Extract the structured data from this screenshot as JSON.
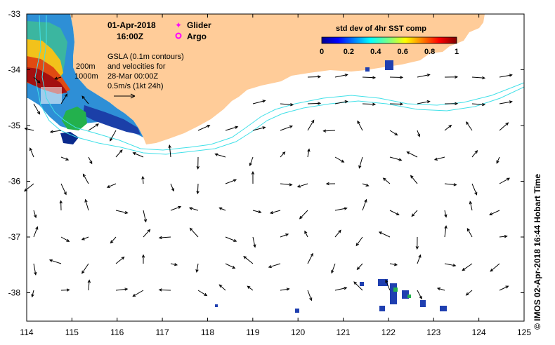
{
  "header": {
    "date": "01-Apr-2018",
    "time": "16:00Z"
  },
  "legend": {
    "glider": "Glider",
    "argo": "Argo",
    "glider_color": "#ff00ff",
    "argo_color": "#ff00ff"
  },
  "annotation": {
    "line1": "GSLA (0.1m contours)",
    "line2": "and velocities for",
    "line3": "28-Mar 00:00Z",
    "line4": "0.5m/s (1kt 24h)"
  },
  "isobaths": {
    "shallow": "200m",
    "deep": "1000m"
  },
  "colorbar": {
    "title": "std dev of 4hr SST comp",
    "ticks": [
      "0",
      "0.2",
      "0.4",
      "0.6",
      "0.8",
      "1"
    ]
  },
  "credit": "© IMOS 02-Apr-2018 16:44 Hobart Time",
  "axes": {
    "x_ticks": [
      "114",
      "115",
      "116",
      "117",
      "118",
      "119",
      "120",
      "121",
      "122",
      "123",
      "124",
      "125"
    ],
    "y_ticks": [
      "-33",
      "-34",
      "-35",
      "-36",
      "-37",
      "-38"
    ]
  },
  "colors": {
    "land": "#ffcc99",
    "isobath": "#40e0e8",
    "frame": "#000000"
  }
}
